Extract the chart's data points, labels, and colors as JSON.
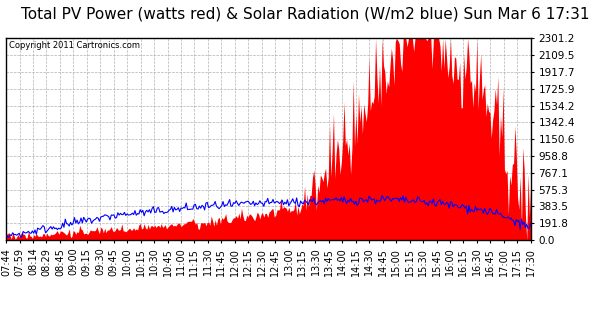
{
  "title": "Total PV Power (watts red) & Solar Radiation (W/m2 blue) Sun Mar 6 17:31",
  "copyright_text": "Copyright 2011 Cartronics.com",
  "yticks": [
    0.0,
    191.8,
    383.5,
    575.3,
    767.1,
    958.8,
    1150.6,
    1342.4,
    1534.2,
    1725.9,
    1917.7,
    2109.5,
    2301.2
  ],
  "ylim": [
    0.0,
    2301.2
  ],
  "plot_bg_color": "#ffffff",
  "fig_bg_color": "#ffffff",
  "grid_color": "#aaaaaa",
  "red_color": "#ff0000",
  "blue_color": "#0000ff",
  "xtick_labels": [
    "07:44",
    "07:59",
    "08:14",
    "08:29",
    "08:45",
    "09:00",
    "09:15",
    "09:30",
    "09:45",
    "10:00",
    "10:15",
    "10:30",
    "10:45",
    "11:00",
    "11:15",
    "11:30",
    "11:45",
    "12:00",
    "12:15",
    "12:30",
    "12:45",
    "13:00",
    "13:15",
    "13:30",
    "13:45",
    "14:00",
    "14:15",
    "14:30",
    "14:45",
    "15:00",
    "15:15",
    "15:30",
    "15:45",
    "16:00",
    "16:15",
    "16:30",
    "16:45",
    "17:00",
    "17:15",
    "17:30"
  ],
  "title_fontsize": 11,
  "tick_fontsize": 7,
  "ytick_fontsize": 7.5
}
